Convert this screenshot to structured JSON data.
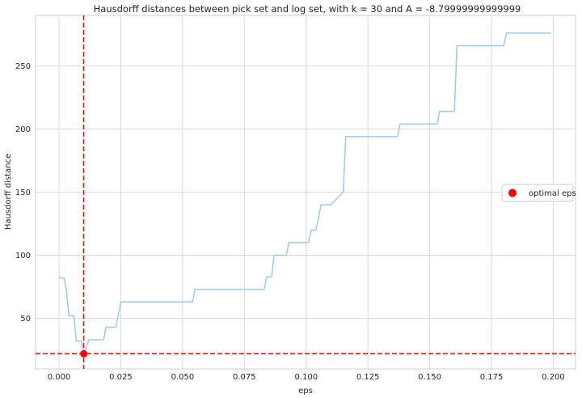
{
  "chart_data": {
    "type": "line",
    "title": "Hausdorff distances between pick set and log set, with k = 30 and A = -8.79999999999999",
    "xlabel": "eps",
    "ylabel": "Hausdorff distance",
    "xlim": [
      -0.0095,
      0.209
    ],
    "ylim": [
      10,
      290
    ],
    "xticks": [
      0.0,
      0.025,
      0.05,
      0.075,
      0.1,
      0.125,
      0.15,
      0.175,
      0.2
    ],
    "xtick_labels": [
      "0.000",
      "0.025",
      "0.050",
      "0.075",
      "0.100",
      "0.125",
      "0.150",
      "0.175",
      "0.200"
    ],
    "yticks": [
      50,
      100,
      150,
      200,
      250
    ],
    "ytick_labels": [
      "50",
      "100",
      "150",
      "200",
      "250"
    ],
    "grid": true,
    "series": [
      {
        "color": "#9ecae9",
        "x": [
          0.0,
          0.002,
          0.003,
          0.004,
          0.005,
          0.006,
          0.007,
          0.008,
          0.009,
          0.01,
          0.011,
          0.012,
          0.013,
          0.014,
          0.015,
          0.016,
          0.017,
          0.018,
          0.019,
          0.02,
          0.021,
          0.022,
          0.023,
          0.024,
          0.025,
          0.03,
          0.04,
          0.05,
          0.054,
          0.055,
          0.06,
          0.07,
          0.08,
          0.083,
          0.084,
          0.085,
          0.086,
          0.087,
          0.09,
          0.092,
          0.093,
          0.095,
          0.1,
          0.101,
          0.102,
          0.104,
          0.105,
          0.106,
          0.11,
          0.115,
          0.116,
          0.12,
          0.13,
          0.137,
          0.138,
          0.15,
          0.153,
          0.154,
          0.16,
          0.161,
          0.17,
          0.18,
          0.181,
          0.19,
          0.199
        ],
        "y": [
          82,
          82,
          72,
          52,
          52,
          52,
          32,
          32,
          32,
          22,
          27,
          33,
          33,
          33,
          33,
          33,
          33,
          33,
          43,
          43,
          43,
          43,
          43,
          53,
          63,
          63,
          63,
          63,
          63,
          73,
          73,
          73,
          73,
          73,
          83,
          83,
          83,
          100,
          100,
          100,
          110,
          110,
          110,
          110,
          120,
          120,
          130,
          140,
          140,
          150,
          194,
          194,
          194,
          194,
          204,
          204,
          204,
          214,
          214,
          266,
          266,
          266,
          276,
          276,
          276
        ]
      }
    ],
    "optimal_point": {
      "x": 0.01,
      "y": 22,
      "color": "#ff0000"
    },
    "vertical_line": {
      "x": 0.01,
      "color": "#ff0000",
      "style": "dashed"
    },
    "horizontal_line": {
      "y": 22,
      "color": "#ff0000",
      "style": "dashed"
    },
    "legend": {
      "position": "right",
      "entries": [
        {
          "label": "optimal eps",
          "marker": "circle",
          "color": "#ff0000"
        }
      ]
    }
  }
}
